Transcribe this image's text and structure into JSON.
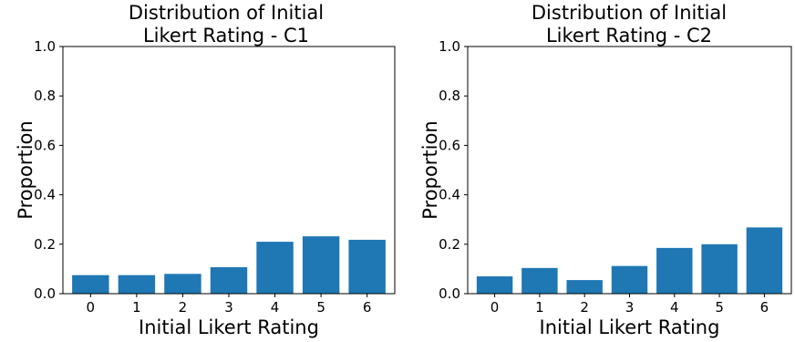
{
  "chart_data": [
    {
      "type": "bar",
      "title": "Distribution of Initial\nLikert Rating - C1",
      "xlabel": "Initial Likert Rating",
      "ylabel": "Proportion",
      "categories": [
        "0",
        "1",
        "2",
        "3",
        "4",
        "5",
        "6"
      ],
      "values": [
        0.075,
        0.075,
        0.08,
        0.107,
        0.21,
        0.232,
        0.218
      ],
      "ylim": [
        0,
        1.0
      ],
      "yticks": [
        0.0,
        0.2,
        0.4,
        0.6,
        0.8,
        1.0
      ],
      "ytick_labels": [
        "0.0",
        "0.2",
        "0.4",
        "0.6",
        "0.8",
        "1.0"
      ],
      "bar_color": "#1f77b4",
      "grid": false,
      "legend": "none"
    },
    {
      "type": "bar",
      "title": "Distribution of Initial\nLikert Rating - C2",
      "xlabel": "Initial Likert Rating",
      "ylabel": "Proportion",
      "categories": [
        "0",
        "1",
        "2",
        "3",
        "4",
        "5",
        "6"
      ],
      "values": [
        0.07,
        0.104,
        0.055,
        0.112,
        0.185,
        0.2,
        0.268
      ],
      "ylim": [
        0,
        1.0
      ],
      "yticks": [
        0.0,
        0.2,
        0.4,
        0.6,
        0.8,
        1.0
      ],
      "ytick_labels": [
        "0.0",
        "0.2",
        "0.4",
        "0.6",
        "0.8",
        "1.0"
      ],
      "bar_color": "#1f77b4",
      "grid": false,
      "legend": "none"
    }
  ]
}
